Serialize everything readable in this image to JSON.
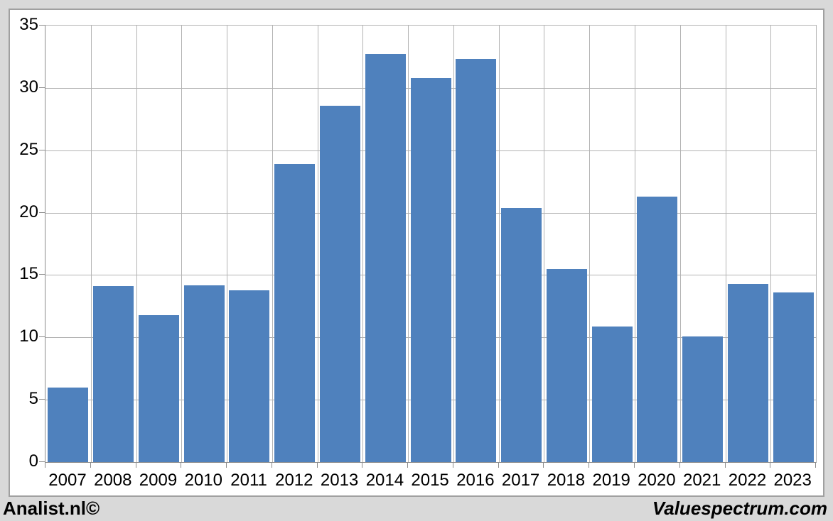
{
  "chart_data": {
    "type": "bar",
    "title": "",
    "categories": [
      "2007",
      "2008",
      "2009",
      "2010",
      "2011",
      "2012",
      "2013",
      "2014",
      "2015",
      "2016",
      "2017",
      "2018",
      "2019",
      "2020",
      "2021",
      "2022",
      "2023"
    ],
    "values": [
      6.0,
      14.1,
      11.8,
      14.2,
      13.8,
      23.9,
      28.6,
      32.7,
      30.8,
      32.3,
      20.4,
      15.5,
      10.9,
      21.3,
      10.1,
      14.3,
      13.6
    ],
    "xlabel": "",
    "ylabel": "",
    "ylim": [
      0,
      35
    ],
    "yticks": [
      0,
      5,
      10,
      15,
      20,
      25,
      30,
      35
    ],
    "grid": true,
    "legend_position": "none",
    "bar_color": "#4F81BD"
  },
  "footer": {
    "left_brand": "Analist.nl©",
    "right_brand": "Valuespectrum.com"
  },
  "colors": {
    "page_bg": "#D9D9D9",
    "canvas_bg": "#FFFFFF",
    "canvas_border": "#A0A0A0",
    "gridline": "#B3B3B3",
    "axis": "#8C8C8C",
    "bar": "#4F81BD",
    "text": "#000000"
  }
}
